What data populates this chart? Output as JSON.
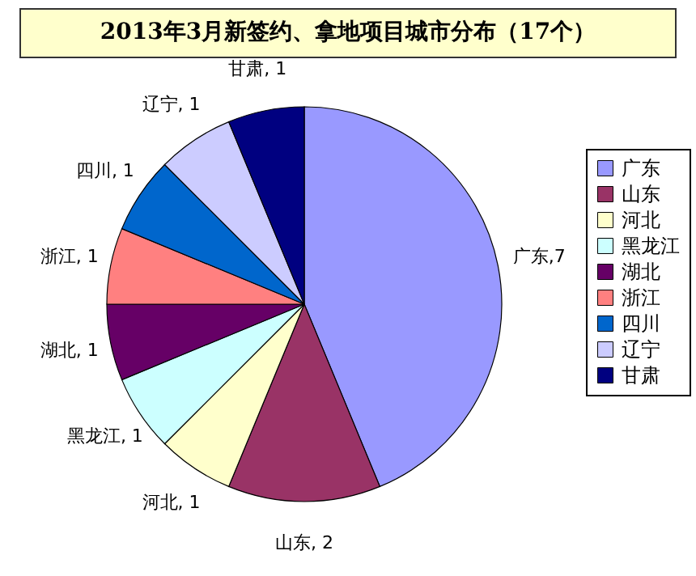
{
  "chart_data": {
    "type": "pie",
    "title": "2013年3月新签约、拿地项目城市分布（17个）",
    "categories": [
      "广东",
      "山东",
      "河北",
      "黑龙江",
      "湖北",
      "浙江",
      "四川",
      "辽宁",
      "甘肃"
    ],
    "values": [
      7,
      2,
      1,
      1,
      1,
      1,
      1,
      1,
      1
    ],
    "colors": [
      "#9999ff",
      "#993366",
      "#ffffcc",
      "#ccffff",
      "#660066",
      "#ff8080",
      "#0066cc",
      "#ccccff",
      "#000080"
    ],
    "value_labels": [
      "广东,7",
      "山东, 2",
      "河北, 1",
      "黑龙江, 1",
      "湖北, 1",
      "浙江, 1",
      "四川, 1",
      "辽宁, 1",
      "甘肃, 1"
    ],
    "legend": "right"
  }
}
